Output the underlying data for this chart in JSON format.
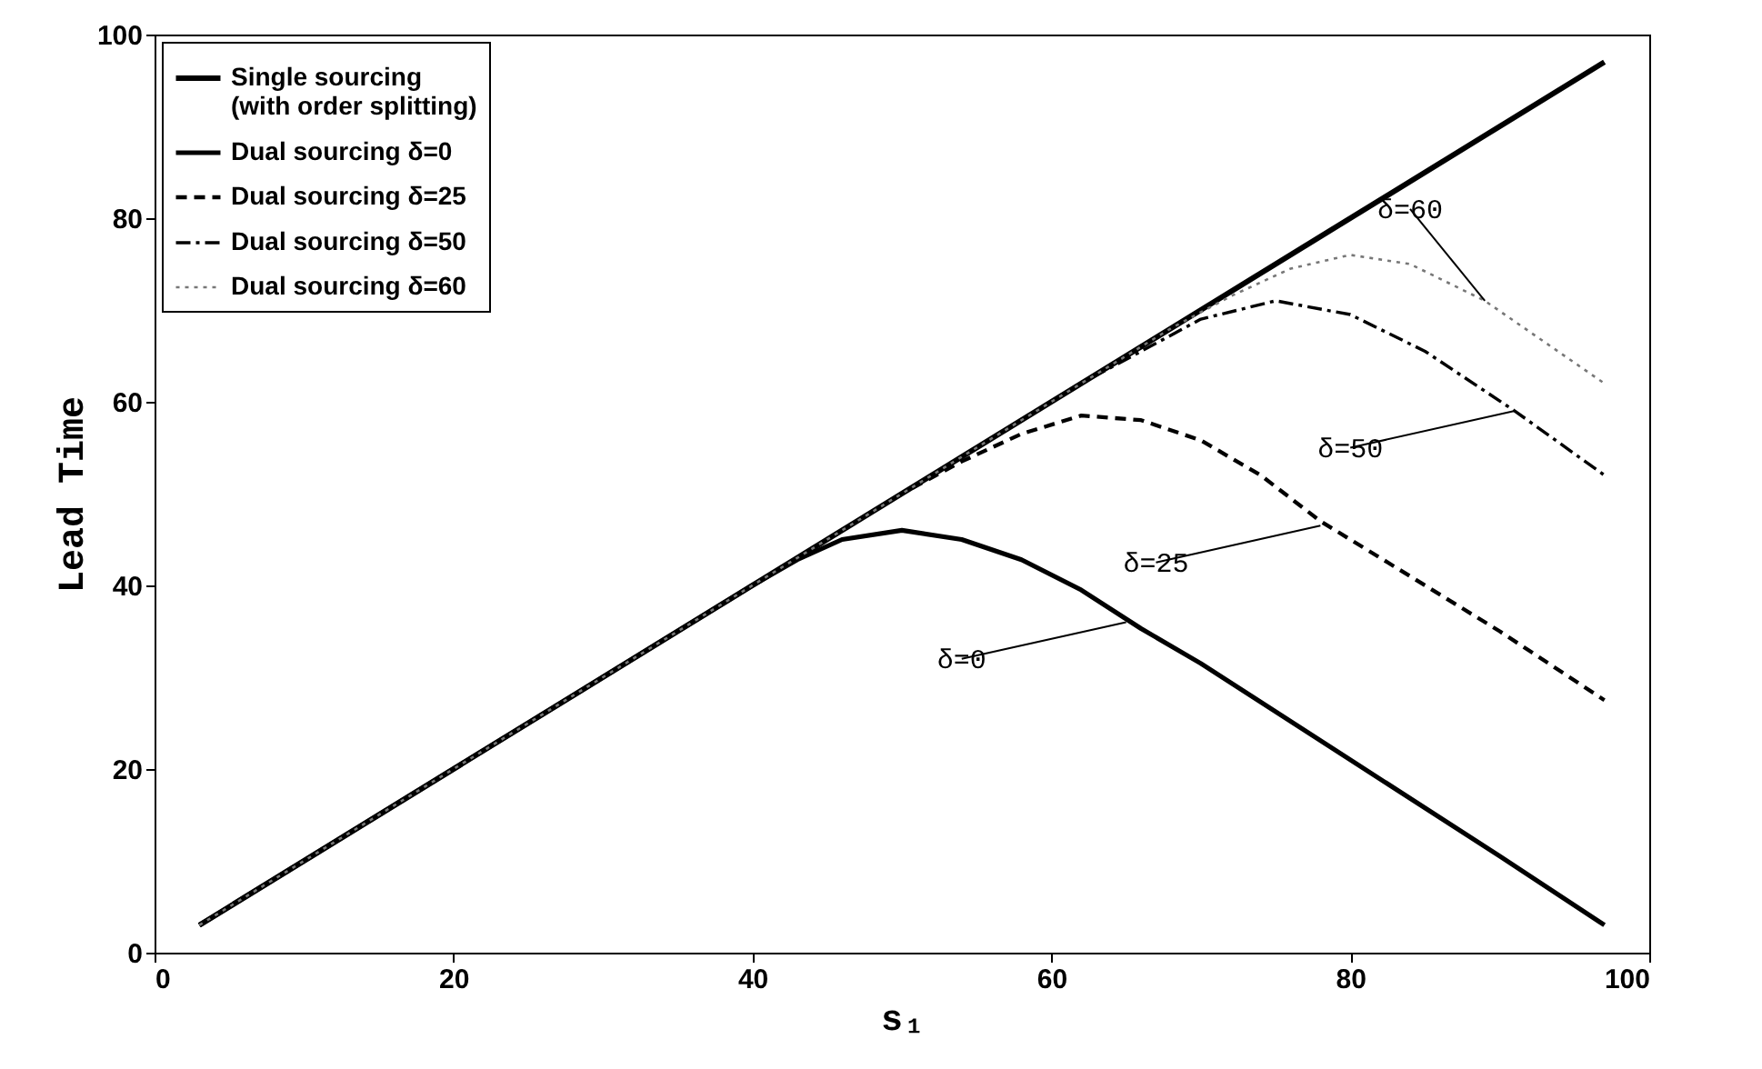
{
  "chart_data": {
    "type": "line",
    "xlabel": "s₁",
    "ylabel": "Lead Time",
    "xlim": [
      0,
      100
    ],
    "ylim": [
      0,
      100
    ],
    "xticks": [
      0,
      20,
      40,
      60,
      80,
      100
    ],
    "yticks": [
      0,
      20,
      40,
      60,
      80,
      100
    ],
    "grid": false,
    "legend": "top left",
    "marker": "none",
    "series": [
      {
        "name": "Single sourcing\n(with order splitting)",
        "color": "#000000",
        "line_style": "solid",
        "x": [
          3,
          97
        ],
        "values": [
          3,
          97
        ]
      },
      {
        "name": "Dual sourcing δ=0",
        "color": "#000000",
        "line_style": "solid",
        "x": [
          3,
          40,
          43,
          46,
          50,
          54,
          58,
          62,
          66,
          70,
          80,
          90,
          97
        ],
        "values": [
          3,
          40,
          42.8,
          45,
          46,
          45,
          42.8,
          39.5,
          35.3,
          31.5,
          21,
          10.5,
          3
        ]
      },
      {
        "name": "Dual sourcing δ=25",
        "color": "#000000",
        "line_style": "dashed",
        "x": [
          3,
          50,
          54,
          58,
          62,
          66,
          70,
          74,
          78,
          85,
          90,
          97
        ],
        "values": [
          3,
          50,
          53.5,
          56.5,
          58.5,
          58,
          55.8,
          52,
          47,
          40,
          35,
          27.5
        ]
      },
      {
        "name": "Dual sourcing δ=50",
        "color": "#000000",
        "line_style": "dashdot",
        "x": [
          3,
          62,
          66,
          70,
          75,
          80,
          85,
          91,
          97
        ],
        "values": [
          3,
          62,
          65.5,
          69,
          71,
          69.5,
          65.5,
          59,
          52
        ]
      },
      {
        "name": "Dual sourcing δ=60",
        "color": "#777777",
        "line_style": "dotted",
        "x": [
          3,
          68,
          72,
          76,
          80,
          84,
          89,
          93,
          97
        ],
        "values": [
          3,
          68,
          71.5,
          74.5,
          76,
          75,
          71,
          66.5,
          62
        ]
      }
    ],
    "annotations": [
      {
        "text": "δ=0",
        "x": 65,
        "y": 36
      },
      {
        "text": "δ=25",
        "x": 78,
        "y": 46.5
      },
      {
        "text": "δ=50",
        "x": 91,
        "y": 59
      },
      {
        "text": "δ=60",
        "x": 89,
        "y": 71
      }
    ]
  }
}
